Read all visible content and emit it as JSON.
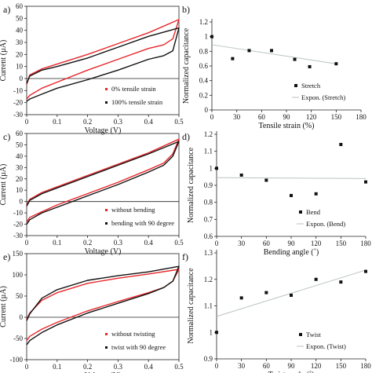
{
  "panel_labels": [
    "a)",
    "b)",
    "c)",
    "d)",
    "e)",
    "f)"
  ],
  "colors": {
    "red": "#e8262a",
    "black": "#111111",
    "trend": "#b9c2c4"
  },
  "chart_data": [
    {
      "panel": "a)",
      "type": "line",
      "xlabel": "Voltage (V)",
      "ylabel": "Current (µA)",
      "xlim": [
        0,
        0.5
      ],
      "ylim": [
        -30,
        60
      ],
      "xticks": [
        "0",
        "0.1",
        "0.2",
        "0.3",
        "0.4",
        "0.5"
      ],
      "yticks": [
        "-30",
        "-20",
        "-10",
        "0",
        "10",
        "20",
        "30",
        "40",
        "50",
        "60"
      ],
      "legend_position": "bottom-right",
      "series": [
        {
          "name": "0% tensile strain",
          "color": "#e8262a",
          "upper": [
            [
              0,
              -5
            ],
            [
              0.01,
              3
            ],
            [
              0.05,
              8
            ],
            [
              0.1,
              12
            ],
            [
              0.2,
              20
            ],
            [
              0.3,
              29
            ],
            [
              0.4,
              38
            ],
            [
              0.5,
              49
            ]
          ],
          "lower": [
            [
              0.5,
              49
            ],
            [
              0.48,
              33
            ],
            [
              0.45,
              28
            ],
            [
              0.4,
              25
            ],
            [
              0.3,
              16
            ],
            [
              0.2,
              7
            ],
            [
              0.1,
              -3
            ],
            [
              0.05,
              -8
            ],
            [
              0.01,
              -14
            ],
            [
              0,
              -17
            ]
          ]
        },
        {
          "name": "100% tensile strain",
          "color": "#111111",
          "upper": [
            [
              0,
              -4
            ],
            [
              0.01,
              2
            ],
            [
              0.05,
              7
            ],
            [
              0.1,
              10
            ],
            [
              0.2,
              17
            ],
            [
              0.3,
              26
            ],
            [
              0.4,
              35
            ],
            [
              0.5,
              42
            ]
          ],
          "lower": [
            [
              0.5,
              42
            ],
            [
              0.48,
              23
            ],
            [
              0.45,
              19
            ],
            [
              0.4,
              16
            ],
            [
              0.3,
              7
            ],
            [
              0.2,
              -1
            ],
            [
              0.1,
              -8
            ],
            [
              0.05,
              -13
            ],
            [
              0.01,
              -17
            ],
            [
              0,
              -19
            ]
          ]
        }
      ]
    },
    {
      "panel": "b)",
      "type": "scatter",
      "xlabel": "Tensile strain (%)",
      "ylabel": "Normalized capacitance",
      "xlim": [
        0,
        180
      ],
      "ylim": [
        0,
        1.2
      ],
      "xticks": [
        "0",
        "30",
        "60",
        "90",
        "120",
        "150",
        "180"
      ],
      "yticks": [
        "0",
        "0.2",
        "0.4",
        "0.6",
        "0.8",
        "1",
        "1.2"
      ],
      "legend_position": "bottom-right",
      "series": [
        {
          "name": "Stretch",
          "x": [
            0,
            25,
            45,
            72,
            100,
            118,
            150
          ],
          "y": [
            1.0,
            0.7,
            0.81,
            0.81,
            0.69,
            0.59,
            0.63
          ]
        }
      ],
      "trendline": {
        "name": "Expon. (Stretch)",
        "x": [
          0,
          150
        ],
        "y": [
          0.89,
          0.63
        ]
      }
    },
    {
      "panel": "c)",
      "type": "line",
      "xlabel": "Voltage (V)",
      "ylabel": "Current (µA)",
      "xlim": [
        0,
        0.5
      ],
      "ylim": [
        -30,
        60
      ],
      "xticks": [
        "0",
        "0.1",
        "0.2",
        "0.3",
        "0.4",
        "0.5"
      ],
      "yticks": [
        "-30",
        "-20",
        "-10",
        "0",
        "10",
        "20",
        "30",
        "40",
        "50",
        "60"
      ],
      "legend_position": "bottom-right",
      "series": [
        {
          "name": "without bending",
          "color": "#e8262a",
          "upper": [
            [
              0,
              -3
            ],
            [
              0.01,
              2
            ],
            [
              0.05,
              8
            ],
            [
              0.1,
              13
            ],
            [
              0.2,
              23
            ],
            [
              0.3,
              33
            ],
            [
              0.4,
              43
            ],
            [
              0.5,
              55
            ]
          ],
          "lower": [
            [
              0.5,
              55
            ],
            [
              0.48,
              42
            ],
            [
              0.45,
              34
            ],
            [
              0.4,
              28
            ],
            [
              0.3,
              17
            ],
            [
              0.2,
              7
            ],
            [
              0.1,
              -3
            ],
            [
              0.05,
              -9
            ],
            [
              0.01,
              -14
            ],
            [
              0,
              -18
            ]
          ]
        },
        {
          "name": "bending with 90 degree",
          "color": "#111111",
          "upper": [
            [
              0,
              -4
            ],
            [
              0.01,
              1
            ],
            [
              0.05,
              7
            ],
            [
              0.1,
              12
            ],
            [
              0.2,
              22
            ],
            [
              0.3,
              32
            ],
            [
              0.4,
              42
            ],
            [
              0.5,
              53
            ]
          ],
          "lower": [
            [
              0.5,
              53
            ],
            [
              0.48,
              40
            ],
            [
              0.45,
              32
            ],
            [
              0.4,
              26
            ],
            [
              0.3,
              15
            ],
            [
              0.2,
              5
            ],
            [
              0.1,
              -5
            ],
            [
              0.05,
              -10
            ],
            [
              0.01,
              -16
            ],
            [
              0,
              -20
            ]
          ]
        }
      ]
    },
    {
      "panel": "d)",
      "type": "scatter",
      "xlabel": "Bending angle (˚)",
      "ylabel": "Normalized capacitance",
      "xlim": [
        0,
        180
      ],
      "ylim": [
        0.6,
        1.2
      ],
      "xticks": [
        "0",
        "30",
        "60",
        "90",
        "120",
        "150",
        "180"
      ],
      "yticks": [
        "0.6",
        "0.7",
        "0.8",
        "0.9",
        "1",
        "1.1",
        "1.2"
      ],
      "legend_position": "bottom-right",
      "series": [
        {
          "name": "Bend",
          "x": [
            0,
            30,
            60,
            90,
            120,
            150,
            180
          ],
          "y": [
            1.0,
            0.96,
            0.93,
            0.84,
            0.85,
            1.14,
            0.92
          ]
        }
      ],
      "trendline": {
        "name": "Expon. (Bend)",
        "x": [
          0,
          180
        ],
        "y": [
          0.945,
          0.94
        ]
      }
    },
    {
      "panel": "e)",
      "type": "line",
      "xlabel": "Voltage (V)",
      "ylabel": "Current (µA)",
      "xlim": [
        0,
        0.5
      ],
      "ylim": [
        -100,
        150
      ],
      "xticks": [
        "0",
        "0.1",
        "0.2",
        "0.3",
        "0.4",
        "0.5"
      ],
      "yticks": [
        "-100",
        "-50",
        "0",
        "50",
        "100",
        "150"
      ],
      "legend_position": "bottom-right",
      "series": [
        {
          "name": "without twisting",
          "color": "#e8262a",
          "upper": [
            [
              0,
              -5
            ],
            [
              0.01,
              10
            ],
            [
              0.05,
              40
            ],
            [
              0.1,
              58
            ],
            [
              0.2,
              80
            ],
            [
              0.3,
              92
            ],
            [
              0.4,
              102
            ],
            [
              0.5,
              113
            ]
          ],
          "lower": [
            [
              0.5,
              113
            ],
            [
              0.48,
              85
            ],
            [
              0.45,
              70
            ],
            [
              0.4,
              58
            ],
            [
              0.3,
              37
            ],
            [
              0.2,
              15
            ],
            [
              0.1,
              -12
            ],
            [
              0.05,
              -28
            ],
            [
              0.01,
              -45
            ],
            [
              0,
              -55
            ]
          ]
        },
        {
          "name": "twist with 90 degree",
          "color": "#111111",
          "upper": [
            [
              0,
              -8
            ],
            [
              0.01,
              8
            ],
            [
              0.05,
              45
            ],
            [
              0.1,
              65
            ],
            [
              0.2,
              87
            ],
            [
              0.3,
              98
            ],
            [
              0.4,
              107
            ],
            [
              0.5,
              120
            ]
          ],
          "lower": [
            [
              0.5,
              120
            ],
            [
              0.48,
              85
            ],
            [
              0.45,
              70
            ],
            [
              0.4,
              56
            ],
            [
              0.3,
              33
            ],
            [
              0.2,
              10
            ],
            [
              0.1,
              -18
            ],
            [
              0.05,
              -36
            ],
            [
              0.01,
              -55
            ],
            [
              0,
              -65
            ]
          ]
        }
      ]
    },
    {
      "panel": "f)",
      "type": "scatter",
      "xlabel": "Twist angle (˚)",
      "ylabel": "Normalized capacitance",
      "xlim": [
        0,
        180
      ],
      "ylim": [
        0.9,
        1.3
      ],
      "xticks": [
        "0",
        "30",
        "60",
        "90",
        "120",
        "150",
        "180"
      ],
      "yticks": [
        "0.9",
        "1",
        "1.1",
        "1.2",
        "1.3"
      ],
      "legend_position": "bottom-right",
      "series": [
        {
          "name": "Twist",
          "x": [
            0,
            30,
            60,
            90,
            120,
            150,
            180
          ],
          "y": [
            1.0,
            1.13,
            1.15,
            1.14,
            1.2,
            1.19,
            1.23
          ]
        }
      ],
      "trendline": {
        "name": "Expon. (Twist)",
        "x": [
          0,
          180
        ],
        "y": [
          1.06,
          1.235
        ]
      }
    }
  ]
}
